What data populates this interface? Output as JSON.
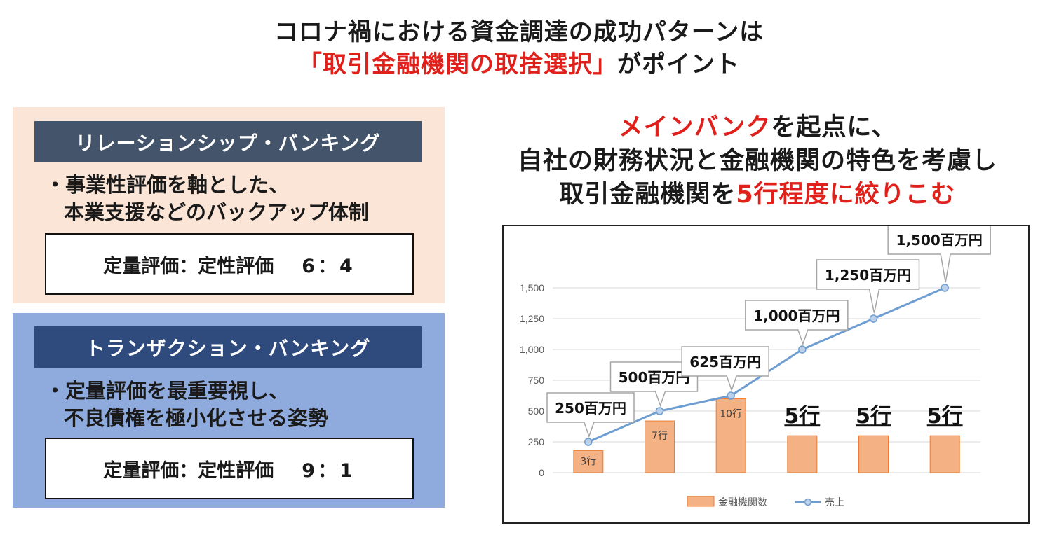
{
  "header": {
    "line1": "コロナ禍における資金調達の成功パターンは",
    "line2_highlight": "「取引金融機関の取捨選択」",
    "line2_rest": "がポイント"
  },
  "relationship": {
    "title": "リレーションシップ・バンキング",
    "bullet_line1": "・事業性評価を軸とした、",
    "bullet_line2": "本業支援などのバックアップ体制",
    "ratio_label": "定量評価：定性評価",
    "ratio_value": "6：4"
  },
  "transaction": {
    "title": "トランザクション・バンキング",
    "bullet_line1": "・定量評価を最重要視し、",
    "bullet_line2": "不良債権を極小化させる姿勢",
    "ratio_label": "定量評価：定性評価",
    "ratio_value": "9：1"
  },
  "right_heading": {
    "line1_highlight": "メインバンク",
    "line1_rest": "を起点に、",
    "line2": "自社の財務状況と金融機関の特色を考慮し",
    "line3_prefix": "取引金融機関を",
    "line3_highlight": "5行程度に絞りこむ"
  },
  "colors": {
    "accent_red": "#e0201b",
    "panel_top_bg": "#fbe5d6",
    "panel_bottom_bg": "#8faadc",
    "band_top": "#44546a",
    "band_bottom": "#2f4a7c",
    "bar_fill": "#f4b183",
    "bar_stroke": "#ed7d31",
    "line_color": "#6d9dd1"
  },
  "chart_data": {
    "type": "bar",
    "ylim": [
      0,
      1500
    ],
    "yticks": [
      "0",
      "250",
      "500",
      "750",
      "1,000",
      "1,250",
      "1,500"
    ],
    "ytick_values": [
      0,
      250,
      500,
      750,
      1000,
      1250,
      1500
    ],
    "grid": true,
    "legend_position": "bottom",
    "series": [
      {
        "name": "金融機関数",
        "kind": "bar",
        "values": [
          180,
          420,
          600,
          300,
          300,
          300
        ],
        "labels": [
          "3行",
          "7行",
          "10行",
          "5行",
          "5行",
          "5行"
        ]
      },
      {
        "name": "売上",
        "kind": "line",
        "values": [
          250,
          500,
          625,
          1000,
          1250,
          1500
        ],
        "callouts": [
          "250百万円",
          "500百万円",
          "625百万円",
          "1,000百万円",
          "1,250百万円",
          "1,500百万円"
        ]
      }
    ]
  }
}
